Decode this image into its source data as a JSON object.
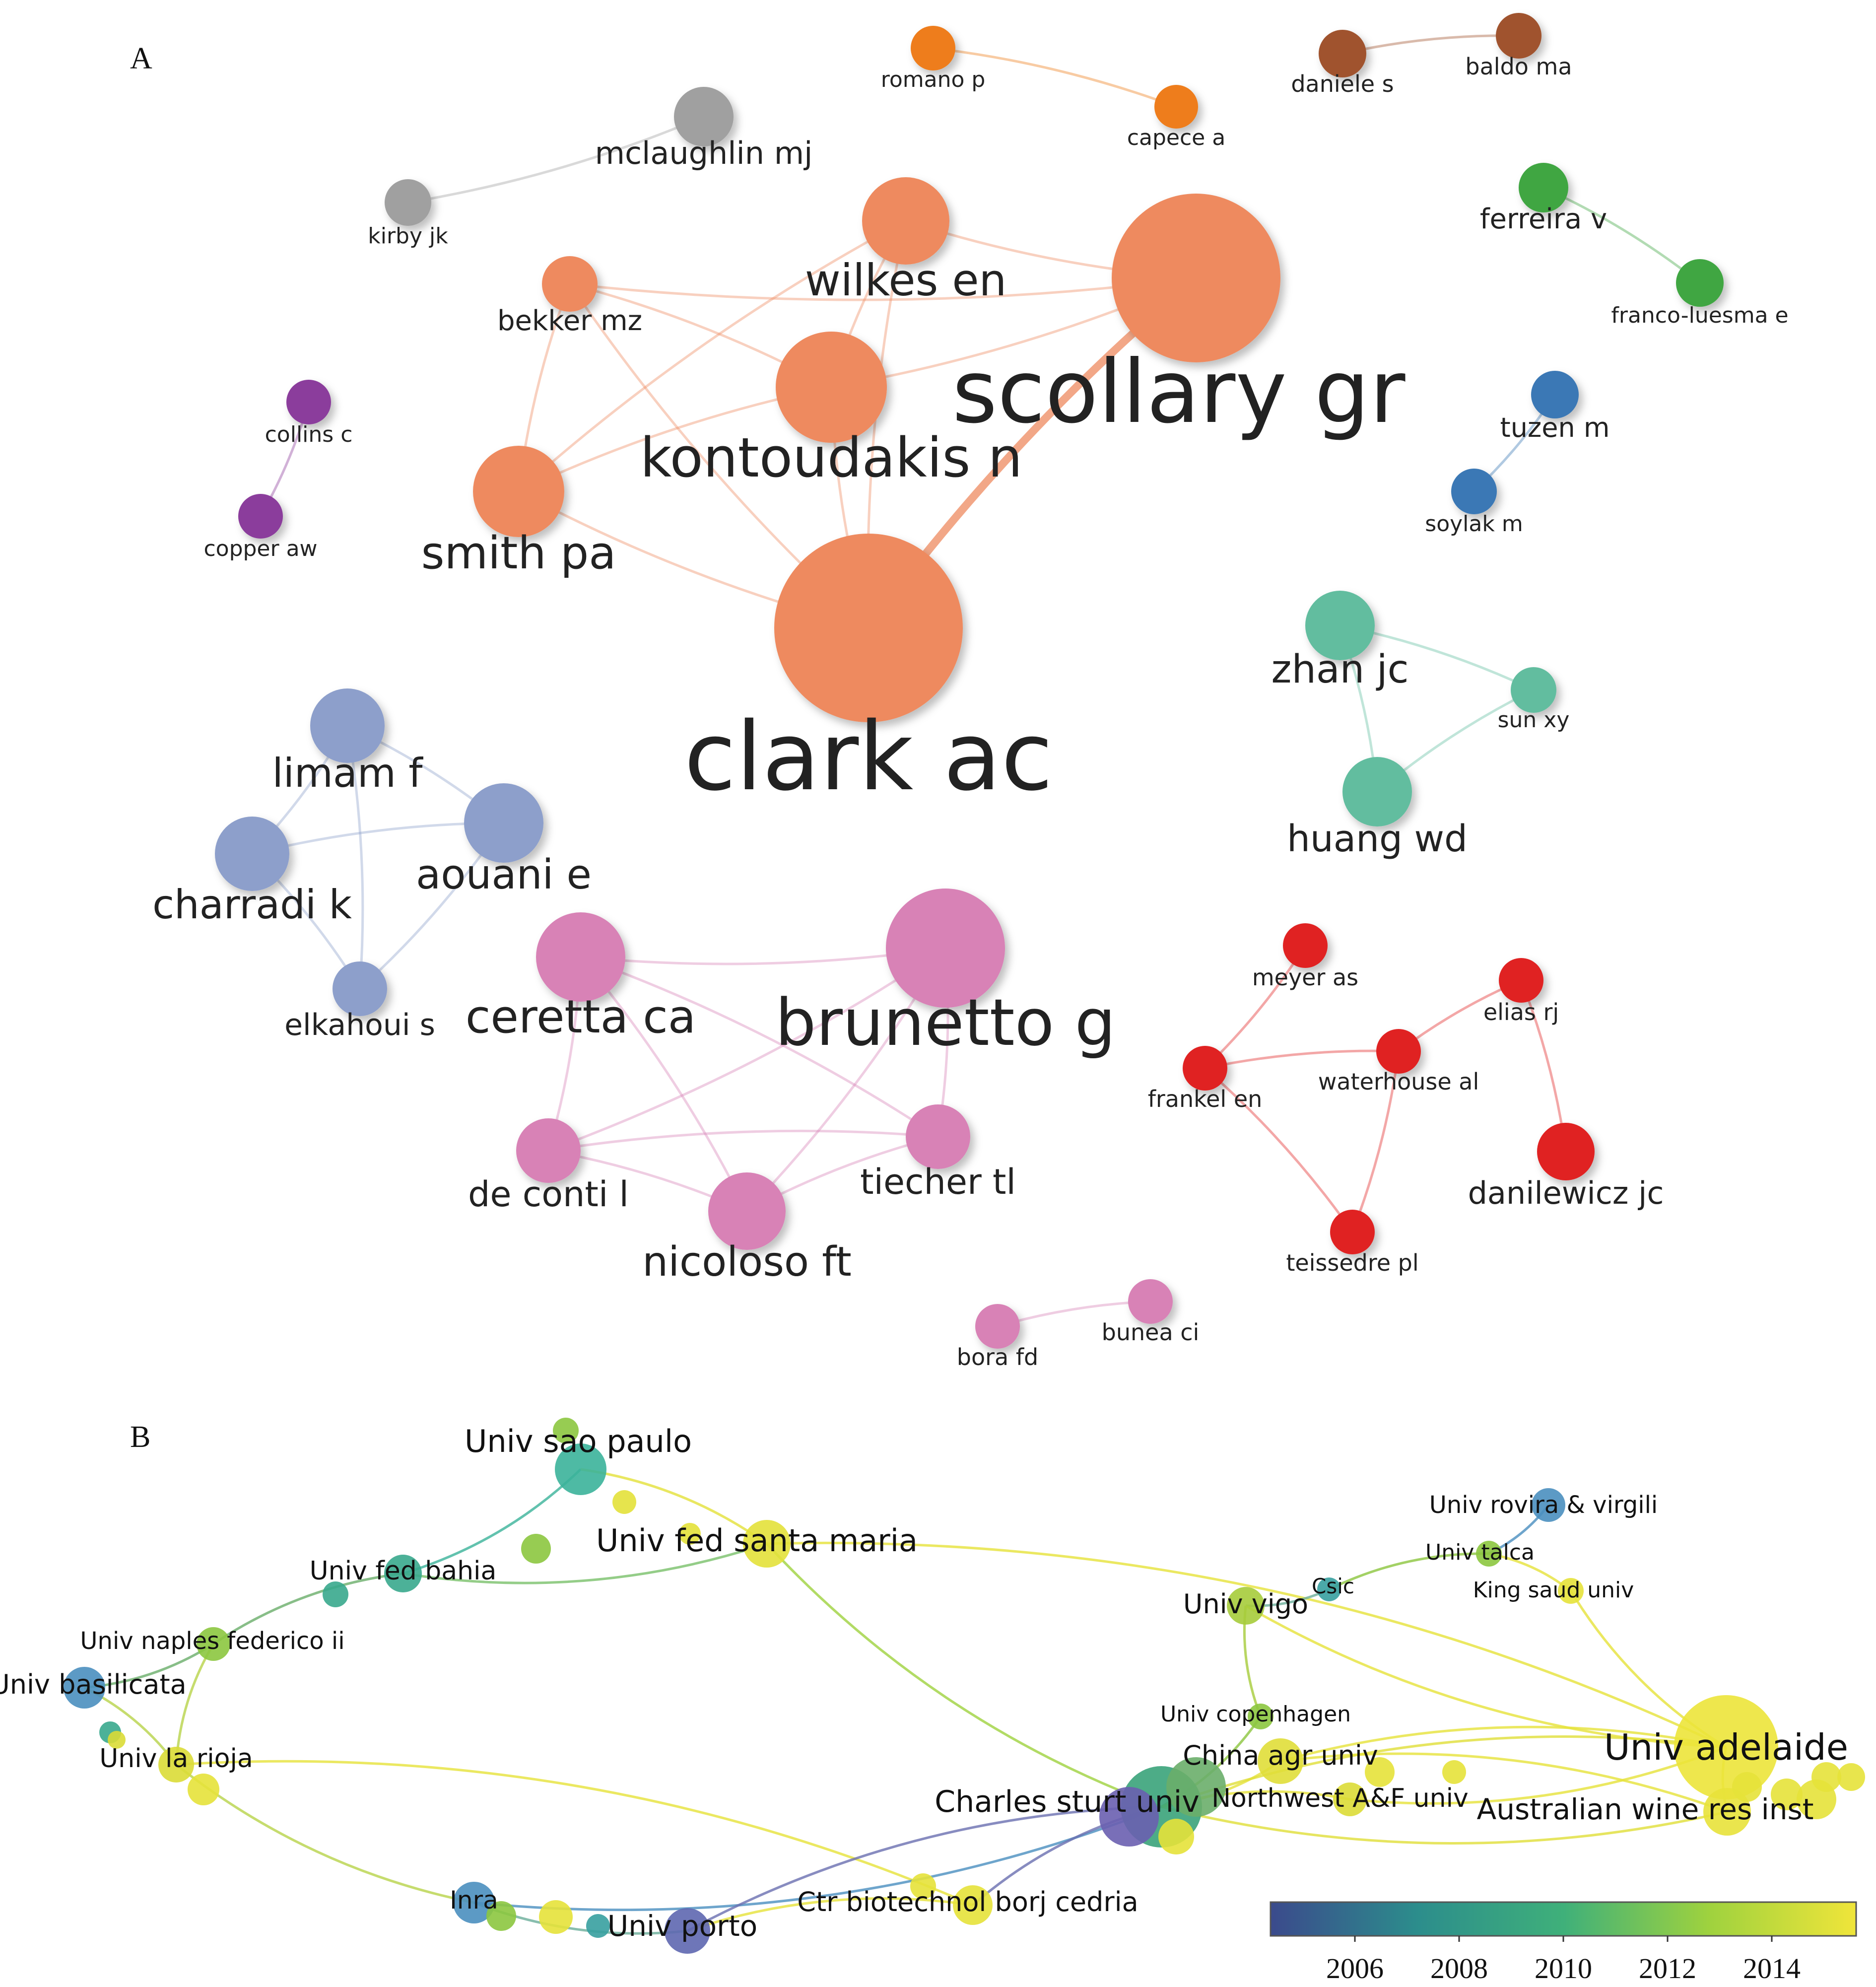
{
  "panel_a": {
    "letter": "A",
    "colors": {
      "orange_cluster": "#ee8a5f",
      "gray": "#a0a0a0",
      "bright_orange": "#ee7d1a",
      "brown": "#a0522d",
      "green": "#3fa642",
      "blue": "#3a78b5",
      "purple": "#8b3c9c",
      "teal": "#62bd9f",
      "lavender": "#8d9fcb",
      "pink": "#d882b6",
      "red": "#e02424"
    },
    "nodes": [
      {
        "id": "clark",
        "label": "clark ac",
        "group": "orange_cluster"
      },
      {
        "id": "scollary",
        "label": "scollary gr",
        "group": "orange_cluster"
      },
      {
        "id": "kontoudakis",
        "label": "kontoudakis n",
        "group": "orange_cluster"
      },
      {
        "id": "wilkes",
        "label": "wilkes en",
        "group": "orange_cluster"
      },
      {
        "id": "smith",
        "label": "smith pa",
        "group": "orange_cluster"
      },
      {
        "id": "bekker",
        "label": "bekker mz",
        "group": "orange_cluster"
      },
      {
        "id": "mclaughlin",
        "label": "mclaughlin mj",
        "group": "gray"
      },
      {
        "id": "kirby",
        "label": "kirby jk",
        "group": "gray"
      },
      {
        "id": "romano",
        "label": "romano p",
        "group": "bright_orange"
      },
      {
        "id": "capece",
        "label": "capece a",
        "group": "bright_orange"
      },
      {
        "id": "daniele",
        "label": "daniele s",
        "group": "brown"
      },
      {
        "id": "baldo",
        "label": "baldo ma",
        "group": "brown"
      },
      {
        "id": "ferreira",
        "label": "ferreira v",
        "group": "green"
      },
      {
        "id": "franco",
        "label": "franco-luesma e",
        "group": "green"
      },
      {
        "id": "tuzen",
        "label": "tuzen m",
        "group": "blue"
      },
      {
        "id": "soylak",
        "label": "soylak m",
        "group": "blue"
      },
      {
        "id": "collins",
        "label": "collins c",
        "group": "purple"
      },
      {
        "id": "copper",
        "label": "copper aw",
        "group": "purple"
      },
      {
        "id": "zhan",
        "label": "zhan jc",
        "group": "teal"
      },
      {
        "id": "sun",
        "label": "sun xy",
        "group": "teal"
      },
      {
        "id": "huang",
        "label": "huang wd",
        "group": "teal"
      },
      {
        "id": "limam",
        "label": "limam f",
        "group": "lavender"
      },
      {
        "id": "aouani",
        "label": "aouani e",
        "group": "lavender"
      },
      {
        "id": "charradi",
        "label": "charradi k",
        "group": "lavender"
      },
      {
        "id": "elkahoui",
        "label": "elkahoui s",
        "group": "lavender"
      },
      {
        "id": "brunetto",
        "label": "brunetto g",
        "group": "pink"
      },
      {
        "id": "ceretta",
        "label": "ceretta ca",
        "group": "pink"
      },
      {
        "id": "deconti",
        "label": "de conti l",
        "group": "pink"
      },
      {
        "id": "nicoloso",
        "label": "nicoloso ft",
        "group": "pink"
      },
      {
        "id": "tiecher",
        "label": "tiecher tl",
        "group": "pink"
      },
      {
        "id": "bora",
        "label": "bora fd",
        "group": "pink"
      },
      {
        "id": "bunea",
        "label": "bunea ci",
        "group": "pink"
      },
      {
        "id": "meyer",
        "label": "meyer as",
        "group": "red"
      },
      {
        "id": "elias",
        "label": "elias rj",
        "group": "red"
      },
      {
        "id": "frankel",
        "label": "frankel en",
        "group": "red"
      },
      {
        "id": "waterhouse",
        "label": "waterhouse al",
        "group": "red"
      },
      {
        "id": "danilewicz",
        "label": "danilewicz jc",
        "group": "red"
      },
      {
        "id": "teissedre",
        "label": "teissedre pl",
        "group": "red"
      }
    ],
    "edges": [
      [
        "clark",
        "scollary"
      ],
      [
        "clark",
        "kontoudakis"
      ],
      [
        "clark",
        "wilkes"
      ],
      [
        "clark",
        "smith"
      ],
      [
        "clark",
        "bekker"
      ],
      [
        "scollary",
        "kontoudakis"
      ],
      [
        "scollary",
        "wilkes"
      ],
      [
        "scollary",
        "bekker"
      ],
      [
        "smith",
        "kontoudakis"
      ],
      [
        "smith",
        "wilkes"
      ],
      [
        "smith",
        "bekker"
      ],
      [
        "kontoudakis",
        "wilkes"
      ],
      [
        "bekker",
        "kontoudakis"
      ],
      [
        "mclaughlin",
        "kirby"
      ],
      [
        "romano",
        "capece"
      ],
      [
        "daniele",
        "baldo"
      ],
      [
        "ferreira",
        "franco"
      ],
      [
        "tuzen",
        "soylak"
      ],
      [
        "collins",
        "copper"
      ],
      [
        "zhan",
        "sun"
      ],
      [
        "zhan",
        "huang"
      ],
      [
        "huang",
        "sun"
      ],
      [
        "limam",
        "aouani"
      ],
      [
        "limam",
        "charradi"
      ],
      [
        "limam",
        "elkahoui"
      ],
      [
        "charradi",
        "aouani"
      ],
      [
        "charradi",
        "elkahoui"
      ],
      [
        "aouani",
        "elkahoui"
      ],
      [
        "brunetto",
        "ceretta"
      ],
      [
        "brunetto",
        "deconti"
      ],
      [
        "brunetto",
        "nicoloso"
      ],
      [
        "brunetto",
        "tiecher"
      ],
      [
        "ceretta",
        "deconti"
      ],
      [
        "ceretta",
        "nicoloso"
      ],
      [
        "ceretta",
        "tiecher"
      ],
      [
        "deconti",
        "tiecher"
      ],
      [
        "deconti",
        "nicoloso"
      ],
      [
        "nicoloso",
        "tiecher"
      ],
      [
        "bora",
        "bunea"
      ],
      [
        "meyer",
        "frankel"
      ],
      [
        "frankel",
        "waterhouse"
      ],
      [
        "waterhouse",
        "elias"
      ],
      [
        "elias",
        "danilewicz"
      ],
      [
        "frankel",
        "teissedre"
      ],
      [
        "waterhouse",
        "teissedre"
      ]
    ]
  },
  "panel_b": {
    "letter": "B",
    "institutions": [
      {
        "id": "saopaulo",
        "label": "Univ sao paulo",
        "color": "#3bb39a"
      },
      {
        "id": "santamaria",
        "label": "Univ fed santa maria",
        "color": "#e3e13a"
      },
      {
        "id": "bahia",
        "label": "Univ fed bahia",
        "color": "#38a98d"
      },
      {
        "id": "naples",
        "label": "Univ naples federico ii",
        "color": "#8cc63f"
      },
      {
        "id": "basilicata",
        "label": "Univ basilicata",
        "color": "#4a8fbf"
      },
      {
        "id": "larioja",
        "label": "Univ la rioja",
        "color": "#dadc36"
      },
      {
        "id": "inra",
        "label": "Inra",
        "color": "#4a8fbf"
      },
      {
        "id": "porto",
        "label": "Univ porto",
        "color": "#5e67b0"
      },
      {
        "id": "borj",
        "label": "Ctr biotechnol borj cedria",
        "color": "#e6e23a"
      },
      {
        "id": "charles",
        "label": "Charles sturt univ",
        "color": "#3aa37a"
      },
      {
        "id": "copenhagen",
        "label": "Univ copenhagen",
        "color": "#8cc63f"
      },
      {
        "id": "china",
        "label": "China agr univ",
        "color": "#e0de38"
      },
      {
        "id": "northwest",
        "label": "Northwest A&F univ",
        "color": "#dcdc36"
      },
      {
        "id": "vigo",
        "label": "Univ vigo",
        "color": "#a6cc3b"
      },
      {
        "id": "csic",
        "label": "Csic",
        "color": "#37a0a0"
      },
      {
        "id": "rovira",
        "label": "Univ rovira & virgili",
        "color": "#4a8fbf"
      },
      {
        "id": "talca",
        "label": "Univ talca",
        "color": "#8cc63f"
      },
      {
        "id": "kingsaud",
        "label": "King saud univ",
        "color": "#e6e23a"
      },
      {
        "id": "adelaide",
        "label": "Univ adelaide",
        "color": "#ece43a"
      },
      {
        "id": "awri",
        "label": "Australian wine res inst",
        "color": "#e8e23a"
      }
    ],
    "colorbar": {
      "ticks": [
        "2006",
        "2008",
        "2010",
        "2012",
        "2014"
      ],
      "colors": [
        "#3b4a8c",
        "#2c8d8c",
        "#3fb07a",
        "#9fd23e",
        "#f0e53a"
      ]
    }
  }
}
